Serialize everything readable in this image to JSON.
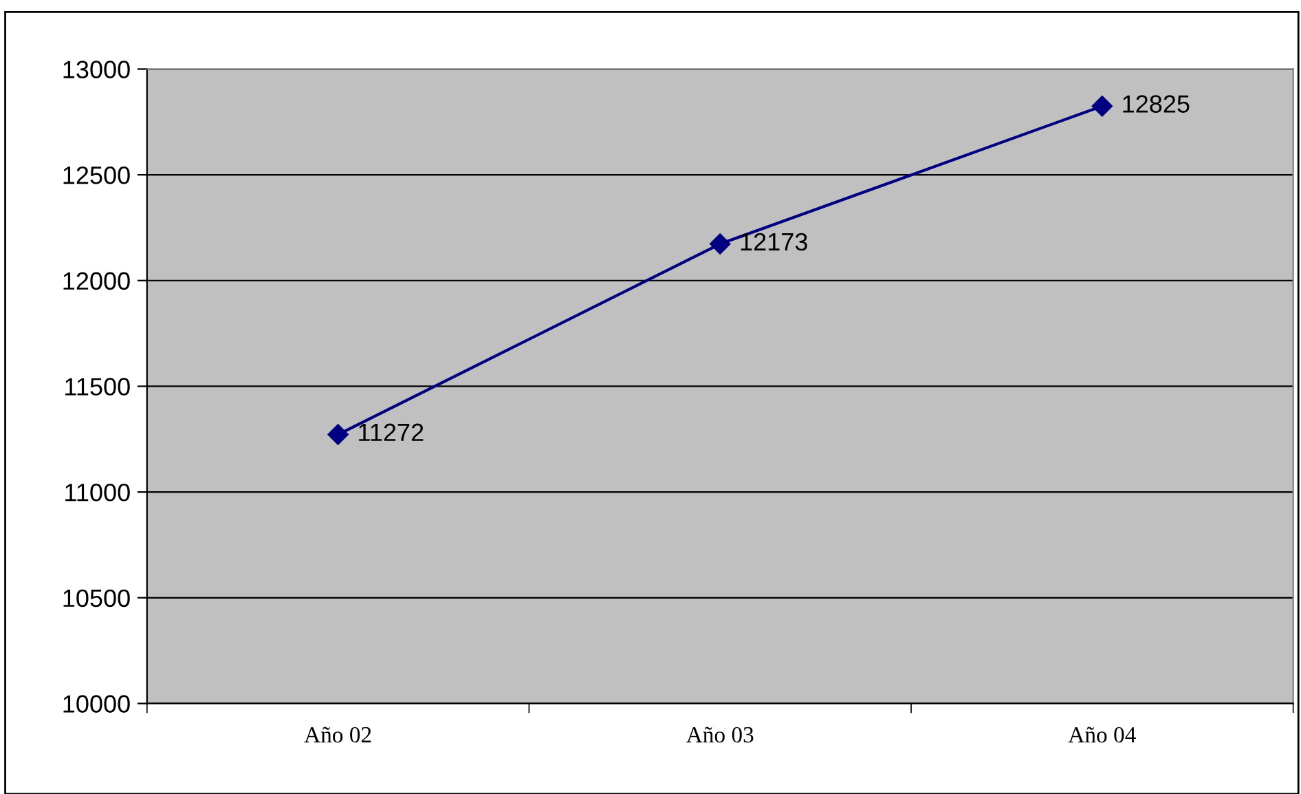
{
  "chart_data": {
    "type": "line",
    "categories": [
      "Año 02",
      "Año 03",
      "Año 04"
    ],
    "series": [
      {
        "color": "#000080",
        "values": [
          11272,
          12173,
          12825
        ]
      }
    ],
    "ylim": [
      10000,
      13000
    ],
    "yticks": [
      10000,
      10500,
      11000,
      11500,
      12000,
      12500,
      13000
    ],
    "grid": "y",
    "marker": "diamond",
    "line_style": "solid",
    "data_labels": true
  }
}
